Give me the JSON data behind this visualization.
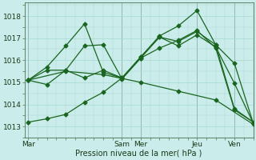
{
  "background_color": "#caecea",
  "grid_color": "#a8d8d4",
  "line_color": "#1a6620",
  "xlabel": "Pression niveau de la mer( hPa )",
  "ylim": [
    1012.5,
    1018.6
  ],
  "yticks": [
    1013,
    1014,
    1015,
    1016,
    1017,
    1018
  ],
  "xtick_labels": [
    "Mar",
    "Sam",
    "Mer",
    "Jeu",
    "Ven"
  ],
  "xtick_positions": [
    0,
    5,
    6,
    9,
    11
  ],
  "xlim": [
    -0.2,
    12
  ],
  "vline_x": [
    0,
    5,
    6,
    9,
    11
  ],
  "series": [
    {
      "x": [
        0,
        1,
        2,
        3,
        4,
        5,
        6,
        7,
        8,
        9,
        10,
        11,
        12
      ],
      "y": [
        1015.1,
        1015.55,
        1015.55,
        1016.65,
        1016.7,
        1015.15,
        1016.1,
        1017.05,
        1016.65,
        1017.15,
        1016.6,
        1014.95,
        1013.15
      ]
    },
    {
      "x": [
        0,
        1,
        2,
        3,
        4,
        5,
        6,
        7,
        8,
        9,
        10,
        11,
        12
      ],
      "y": [
        1015.1,
        1015.7,
        1016.65,
        1017.65,
        1015.45,
        1015.2,
        1016.15,
        1017.1,
        1017.55,
        1018.25,
        1016.7,
        1013.8,
        1013.2
      ]
    },
    {
      "x": [
        0,
        1,
        2,
        3,
        4,
        5,
        6,
        7,
        8,
        9,
        10,
        11,
        12
      ],
      "y": [
        1015.1,
        1014.9,
        1015.55,
        1015.2,
        1015.55,
        1015.2,
        1016.15,
        1017.05,
        1016.85,
        1017.3,
        1016.7,
        1015.85,
        1013.15
      ]
    },
    {
      "x": [
        0,
        2,
        4,
        6,
        8,
        10,
        12
      ],
      "y": [
        1015.1,
        1015.5,
        1015.35,
        1015.0,
        1014.6,
        1014.2,
        1013.1
      ]
    },
    {
      "x": [
        0,
        1,
        2,
        3,
        4,
        5,
        6,
        7,
        8,
        9,
        10,
        11,
        12
      ],
      "y": [
        1013.2,
        1013.35,
        1013.55,
        1014.1,
        1014.55,
        1015.2,
        1016.1,
        1016.55,
        1016.9,
        1017.35,
        1016.55,
        1013.75,
        1013.2
      ]
    }
  ],
  "marker": "D",
  "markersize": 2.5,
  "linewidth": 0.9
}
